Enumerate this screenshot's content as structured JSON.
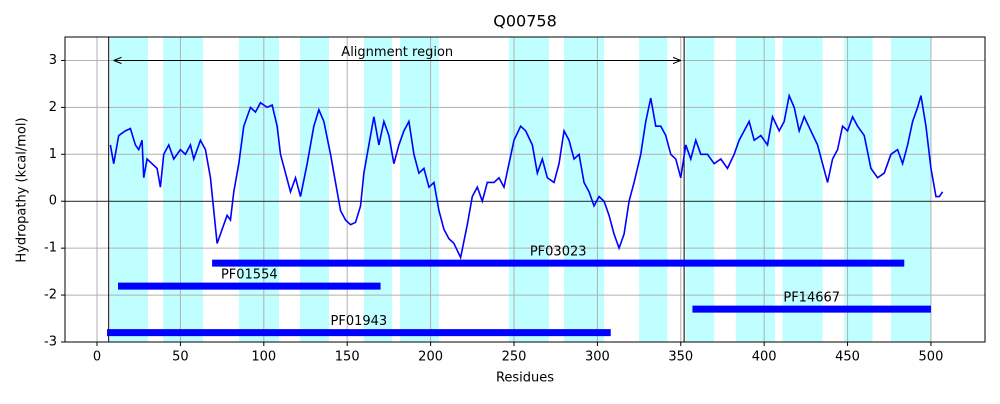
{
  "chart_data": {
    "type": "line",
    "title": "Q00758",
    "xlabel": "Residues",
    "ylabel": "Hydropathy (kcal/mol)",
    "xlim": [
      -19.2,
      532.4
    ],
    "ylim": [
      -3,
      3.5
    ],
    "xticks": [
      0,
      50,
      100,
      150,
      200,
      250,
      300,
      350,
      400,
      450,
      500
    ],
    "yticks": [
      -3,
      -2,
      -1,
      0,
      1,
      2,
      3
    ],
    "grid": true,
    "x": [
      8,
      10,
      13,
      17,
      20,
      23,
      25,
      27,
      28,
      30,
      33,
      36,
      38,
      40,
      43,
      46,
      50,
      53,
      56,
      58,
      62,
      65,
      68,
      70,
      72,
      75,
      78,
      80,
      82,
      85,
      88,
      92,
      95,
      98,
      102,
      105,
      108,
      110,
      113,
      116,
      119,
      122,
      126,
      130,
      133,
      136,
      140,
      143,
      146,
      149,
      152,
      155,
      158,
      160,
      163,
      166,
      169,
      172,
      175,
      178,
      181,
      184,
      187,
      190,
      193,
      196,
      199,
      202,
      205,
      208,
      211,
      214,
      218,
      222,
      225,
      228,
      231,
      234,
      238,
      241,
      244,
      247,
      250,
      254,
      257,
      261,
      264,
      267,
      270,
      274,
      277,
      280,
      283,
      286,
      289,
      292,
      295,
      298,
      301,
      304,
      307,
      310,
      313,
      316,
      319,
      322,
      326,
      329,
      332,
      335,
      338,
      341,
      344,
      347,
      350,
      353,
      356,
      359,
      362,
      366,
      370,
      374,
      378,
      382,
      385,
      388,
      391,
      394,
      398,
      402,
      405,
      409,
      412,
      415,
      418,
      421,
      424,
      428,
      432,
      435,
      438,
      441,
      444,
      447,
      450,
      453,
      456,
      460,
      464,
      468,
      472,
      476,
      480,
      483,
      486,
      489,
      492,
      494,
      497,
      500,
      503,
      505,
      507
    ],
    "series": [
      {
        "name": "Hydropathy",
        "color": "#0000ff",
        "values": [
          1.2,
          0.8,
          1.4,
          1.5,
          1.55,
          1.2,
          1.1,
          1.3,
          0.5,
          0.9,
          0.8,
          0.7,
          0.3,
          1.0,
          1.2,
          0.9,
          1.1,
          1.0,
          1.2,
          0.9,
          1.3,
          1.1,
          0.5,
          -0.2,
          -0.9,
          -0.6,
          -0.3,
          -0.4,
          0.2,
          0.8,
          1.6,
          2.0,
          1.9,
          2.1,
          2.0,
          2.05,
          1.6,
          1.0,
          0.6,
          0.2,
          0.5,
          0.1,
          0.8,
          1.6,
          1.95,
          1.7,
          1.0,
          0.4,
          -0.2,
          -0.4,
          -0.5,
          -0.45,
          -0.1,
          0.6,
          1.2,
          1.8,
          1.2,
          1.7,
          1.4,
          0.8,
          1.2,
          1.5,
          1.7,
          1.0,
          0.6,
          0.7,
          0.3,
          0.4,
          -0.2,
          -0.6,
          -0.8,
          -0.9,
          -1.2,
          -0.5,
          0.1,
          0.3,
          0.0,
          0.4,
          0.4,
          0.5,
          0.3,
          0.8,
          1.3,
          1.6,
          1.5,
          1.2,
          0.6,
          0.9,
          0.5,
          0.4,
          0.8,
          1.5,
          1.3,
          0.9,
          1.0,
          0.4,
          0.2,
          -0.1,
          0.1,
          0.0,
          -0.3,
          -0.7,
          -1.0,
          -0.7,
          0.0,
          0.4,
          1.0,
          1.7,
          2.2,
          1.6,
          1.6,
          1.4,
          1.0,
          0.9,
          0.5,
          1.2,
          0.9,
          1.3,
          1.0,
          1.0,
          0.8,
          0.9,
          0.7,
          1.0,
          1.3,
          1.5,
          1.7,
          1.3,
          1.4,
          1.2,
          1.8,
          1.5,
          1.7,
          2.25,
          2.0,
          1.5,
          1.8,
          1.5,
          1.2,
          0.8,
          0.4,
          0.9,
          1.1,
          1.6,
          1.5,
          1.8,
          1.6,
          1.4,
          0.7,
          0.5,
          0.6,
          1.0,
          1.1,
          0.8,
          1.2,
          1.7,
          2.0,
          2.25,
          1.6,
          0.7,
          0.1,
          0.1,
          0.2
        ]
      }
    ],
    "band_color": "#c0ffff",
    "bands": [
      [
        7.8,
        30.6
      ],
      [
        39.6,
        63.5
      ],
      [
        85.1,
        109.1
      ],
      [
        121.7,
        139.1
      ],
      [
        160.1,
        176.9
      ],
      [
        181.7,
        205
      ],
      [
        247,
        271
      ],
      [
        280,
        304
      ],
      [
        325,
        342
      ],
      [
        353,
        370
      ],
      [
        383,
        406.5
      ],
      [
        411,
        435
      ],
      [
        448,
        465
      ],
      [
        476,
        500
      ]
    ],
    "vlines": [
      7,
      352
    ],
    "alignment": {
      "label": "Alignment region",
      "start": 10,
      "end": 350,
      "y": 3
    },
    "domain_color": "#0000ff",
    "domains": [
      {
        "name": "PF03023",
        "start": 69,
        "end": 484,
        "y": -1.32
      },
      {
        "name": "PF01554",
        "start": 12.6,
        "end": 170,
        "y": -1.81
      },
      {
        "name": "PF14667",
        "start": 357,
        "end": 500,
        "y": -2.3
      },
      {
        "name": "PF01943",
        "start": 6,
        "end": 308,
        "y": -2.8
      }
    ]
  }
}
